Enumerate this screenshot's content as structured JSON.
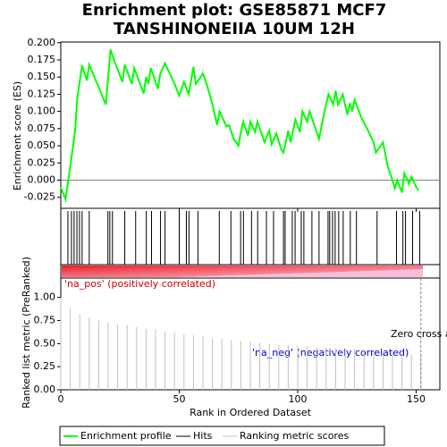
{
  "chart_data": {
    "type": "gsea",
    "title": "Enrichment plot: GSE85871 MCF7",
    "subtitle": "TANSHINONEIIA 10UM 12H",
    "xlabel": "Rank in Ordered Dataset",
    "xlim": [
      0,
      160
    ],
    "xticks": [
      0,
      50,
      100,
      150
    ],
    "es": {
      "ylabel": "Enrichment score (ES)",
      "ylim": [
        -0.041,
        0.201
      ],
      "yticks": [
        {
          "value": -0.025,
          "label": "-0.025"
        },
        {
          "value": 0,
          "label": "0.000"
        },
        {
          "value": 0.025,
          "label": "0.025"
        },
        {
          "value": 0.05,
          "label": "0.050"
        },
        {
          "value": 0.075,
          "label": "0.075"
        },
        {
          "value": 0.1,
          "label": "0.100"
        },
        {
          "value": 0.125,
          "label": "0.125"
        },
        {
          "value": 0.15,
          "label": "0.150"
        },
        {
          "value": 0.175,
          "label": "0.175"
        },
        {
          "value": 0.2,
          "label": "0.200"
        }
      ],
      "series": [
        {
          "name": "Enrichment profile",
          "color": "#00ff00",
          "x": [
            0,
            2,
            4,
            6,
            7,
            9,
            11,
            12,
            16,
            19,
            21,
            23,
            26,
            27,
            30,
            31,
            35,
            36,
            37,
            38,
            41,
            42,
            44,
            48,
            50,
            52,
            54,
            56,
            57,
            60,
            62,
            64,
            66,
            67,
            70,
            71,
            73,
            75,
            76,
            77,
            79,
            80,
            82,
            83,
            85,
            86,
            88,
            89,
            91,
            93,
            94,
            96,
            97,
            99,
            101,
            102,
            104,
            105,
            108,
            109,
            111,
            112,
            113,
            115,
            116,
            117,
            119,
            121,
            122,
            123,
            124,
            127,
            130,
            132,
            133,
            136,
            138,
            140,
            141,
            142,
            144,
            145,
            147,
            148,
            150,
            151
          ],
          "values": [
            -0.01,
            -0.028,
            0.02,
            0.07,
            0.12,
            0.167,
            0.145,
            0.168,
            0.135,
            0.11,
            0.19,
            0.17,
            0.143,
            0.168,
            0.14,
            0.163,
            0.126,
            0.15,
            0.14,
            0.163,
            0.133,
            0.155,
            0.17,
            0.14,
            0.123,
            0.143,
            0.125,
            0.165,
            0.14,
            0.155,
            0.135,
            0.11,
            0.08,
            0.1,
            0.078,
            0.08,
            0.06,
            0.05,
            0.07,
            0.085,
            0.065,
            0.085,
            0.07,
            0.085,
            0.065,
            0.055,
            0.072,
            0.052,
            0.068,
            0.045,
            0.04,
            0.072,
            0.055,
            0.088,
            0.07,
            0.1,
            0.085,
            0.1,
            0.07,
            0.06,
            0.095,
            0.11,
            0.125,
            0.11,
            0.13,
            0.11,
            0.125,
            0.095,
            0.112,
            0.1,
            0.117,
            0.09,
            0.07,
            0.055,
            0.04,
            0.055,
            0.02,
            0.0,
            -0.012,
            0.0,
            -0.018,
            0.01,
            -0.005,
            0.005,
            -0.01,
            -0.015
          ]
        }
      ]
    },
    "hits": {
      "name": "Hits",
      "color": "#000000",
      "x": [
        3,
        4.5,
        5.6,
        6.8,
        7.9,
        9,
        12,
        19.9,
        20.7,
        21.8,
        27,
        31.6,
        36.1,
        38.3,
        42.1,
        44,
        50,
        53,
        54.1,
        57.9,
        66.9,
        71.8,
        75.9,
        77.1,
        80.5,
        83.1,
        86.8,
        89.8,
        94,
        94.7,
        97.7,
        98.9,
        101.5,
        102.6,
        106,
        109,
        112.8,
        113.5,
        114.7,
        115.8,
        117.3,
        119.2,
        122.2,
        124.8,
        133.5,
        141.7,
        144.4,
        145.5,
        148.5,
        151.5
      ]
    },
    "metric": {
      "name": "Ranking metric scores",
      "color": "#c0c0c0",
      "ylabel": "Ranked list metric (PreRanked)",
      "ylim": [
        0,
        1.21
      ],
      "yticks": [
        {
          "value": 0,
          "label": "0.00"
        },
        {
          "value": 0.25,
          "label": "0.25"
        },
        {
          "value": 0.5,
          "label": "0.50"
        },
        {
          "value": 0.75,
          "label": "0.75"
        },
        {
          "value": 1,
          "label": "1.00"
        }
      ],
      "x": [
        0,
        4,
        8,
        12,
        16,
        20,
        24,
        28,
        32,
        36,
        40,
        44,
        48,
        52,
        56,
        60,
        64,
        68,
        72,
        76,
        80,
        84,
        88,
        92,
        96,
        100,
        104,
        108,
        112,
        116,
        120,
        124,
        128,
        132,
        136,
        140,
        144,
        148,
        152
      ],
      "values": [
        1.0,
        0.88,
        0.82,
        0.78,
        0.75,
        0.73,
        0.71,
        0.7,
        0.68,
        0.66,
        0.65,
        0.63,
        0.62,
        0.6,
        0.59,
        0.58,
        0.56,
        0.55,
        0.54,
        0.53,
        0.52,
        0.51,
        0.5,
        0.49,
        0.48,
        0.475,
        0.47,
        0.46,
        0.455,
        0.45,
        0.445,
        0.44,
        0.43,
        0.42,
        0.41,
        0.4,
        0.39,
        0.385,
        0.38
      ],
      "zero_cross": 152,
      "zero_cross_label": "Zero cross at",
      "pos_label": "'na_pos' (positively correlated)",
      "neg_label": "'na_neg' (negatively correlated)"
    }
  }
}
